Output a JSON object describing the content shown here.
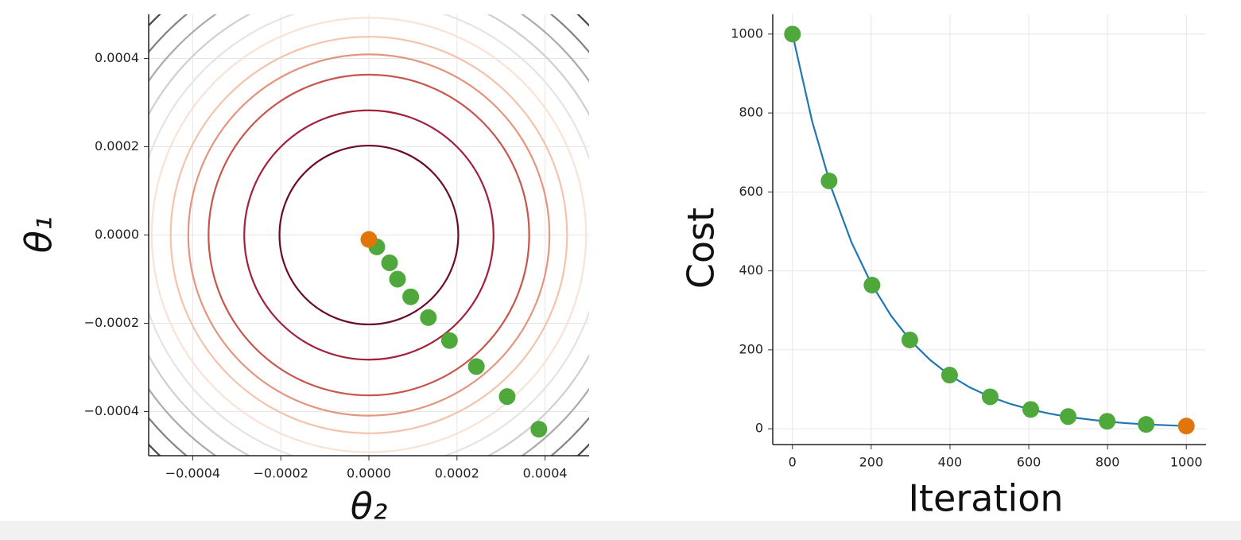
{
  "chart_data": [
    {
      "type": "contour",
      "xlabel": "θ₂",
      "ylabel": "θ₁",
      "xlim": [
        -0.0005,
        0.0005
      ],
      "ylim": [
        -0.0005,
        0.0005
      ],
      "xticks": [
        {
          "value": -0.0004,
          "label": "−0.0004"
        },
        {
          "value": -0.0002,
          "label": "−0.0002"
        },
        {
          "value": 0,
          "label": "0.0000"
        },
        {
          "value": 0.0002,
          "label": "0.0002"
        },
        {
          "value": 0.0004,
          "label": "0.0004"
        }
      ],
      "yticks": [
        {
          "value": -0.0004,
          "label": "−0.0004"
        },
        {
          "value": -0.0002,
          "label": "−0.0002"
        },
        {
          "value": 0,
          "label": "0.0000"
        },
        {
          "value": 0.0002,
          "label": "0.0002"
        },
        {
          "value": 0.0004,
          "label": "0.0004"
        }
      ],
      "grid": true,
      "contours": [
        {
          "radius": 0.000203,
          "color": "#6b0a2a"
        },
        {
          "radius": 0.000283,
          "color": "#a3203a"
        },
        {
          "radius": 0.000364,
          "color": "#c8554c"
        },
        {
          "radius": 0.00041,
          "color": "#e3957d"
        },
        {
          "radius": 0.00045,
          "color": "#f3c3ab"
        },
        {
          "radius": 0.000493,
          "color": "#f9e2d6"
        },
        {
          "radius": 0.00053,
          "color": "#e4e4e4"
        },
        {
          "radius": 0.00057,
          "color": "#cfcfcf"
        },
        {
          "radius": 0.00061,
          "color": "#ababab"
        },
        {
          "radius": 0.00065,
          "color": "#808080"
        },
        {
          "radius": 0.00069,
          "color": "#4a4a4a"
        }
      ],
      "series": [
        {
          "type": "scatter",
          "color": "#4fa83b",
          "x": [
            1.8e-05,
            4.7e-05,
            6.5e-05,
            9.5e-05,
            0.000135,
            0.000183,
            0.000244,
            0.000314,
            0.000386
          ],
          "values": [
            -2.7e-05,
            -6.3e-05,
            -0.0001,
            -0.00014,
            -0.000187,
            -0.000239,
            -0.000298,
            -0.000366,
            -0.00044
          ]
        },
        {
          "type": "scatter",
          "color": "#e0750b",
          "x": [
            0.0
          ],
          "values": [
            -1e-05
          ]
        }
      ]
    },
    {
      "type": "line",
      "xlabel": "Iteration",
      "ylabel": "Cost",
      "xlim": [
        -50,
        1050
      ],
      "ylim": [
        -40,
        1050
      ],
      "xticks": [
        0,
        200,
        400,
        600,
        800,
        1000
      ],
      "yticks": [
        0,
        200,
        400,
        600,
        800,
        1000
      ],
      "grid": true,
      "series": [
        {
          "type": "line",
          "color": "#1f77b4",
          "x": [
            0,
            50,
            100,
            150,
            200,
            250,
            300,
            350,
            400,
            450,
            500,
            550,
            600,
            650,
            700,
            750,
            800,
            850,
            900,
            950,
            1000
          ],
          "values": [
            1000,
            779,
            607,
            472,
            368,
            287,
            223,
            174,
            135,
            105,
            82,
            64,
            50,
            39,
            30,
            24,
            18,
            14,
            11,
            9,
            7
          ]
        },
        {
          "type": "scatter",
          "color": "#4fa83b",
          "x": [
            0,
            93,
            202,
            298,
            399,
            502,
            605,
            700,
            799,
            898
          ],
          "values": [
            1000,
            628,
            364,
            225,
            136,
            81,
            49,
            31,
            19,
            11
          ]
        },
        {
          "type": "scatter",
          "color": "#e0750b",
          "x": [
            1000
          ],
          "values": [
            7
          ]
        }
      ]
    }
  ]
}
